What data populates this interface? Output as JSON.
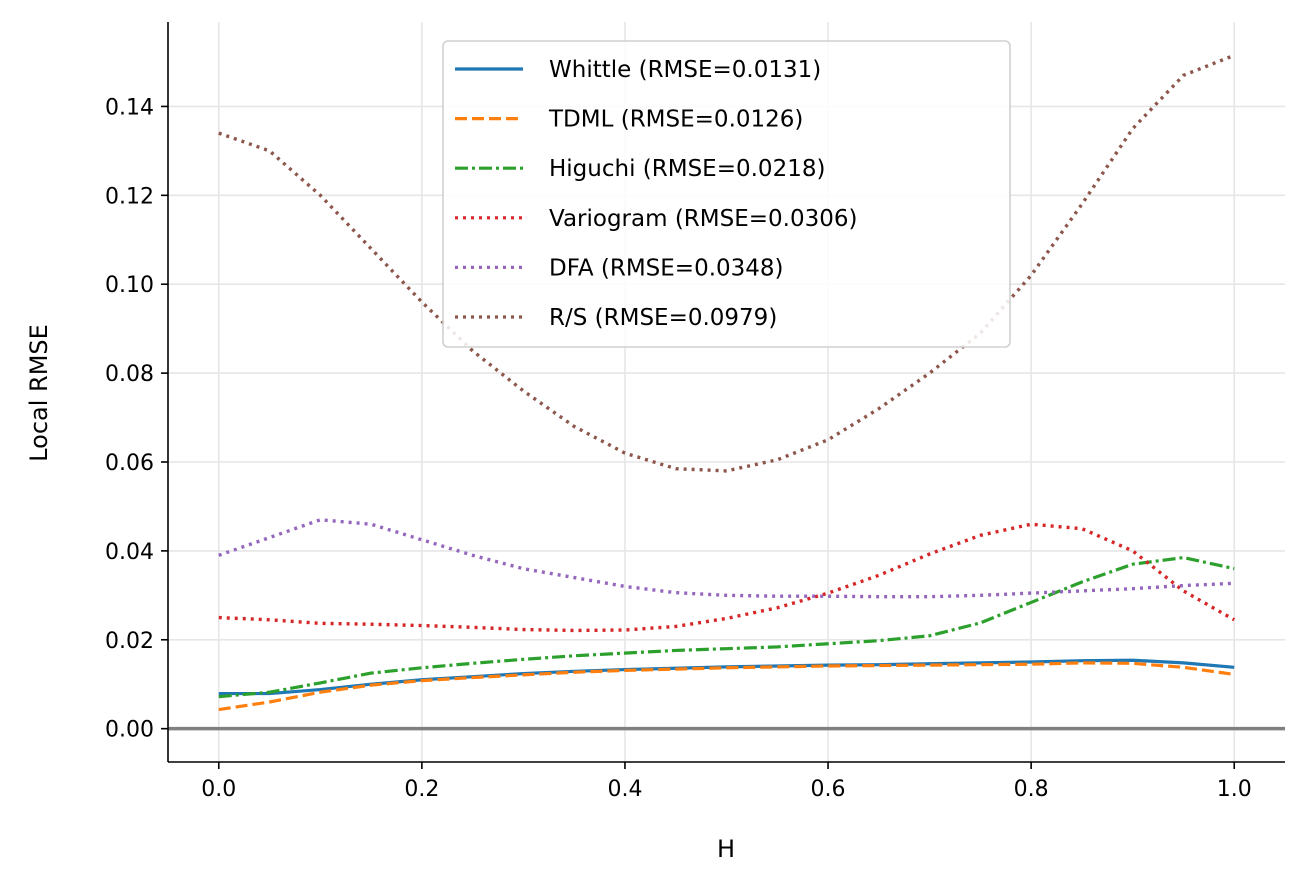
{
  "chart_data": {
    "type": "line",
    "title": "",
    "xlabel": "H",
    "ylabel": "Local RMSE",
    "xlim": [
      -0.05,
      1.05
    ],
    "ylim": [
      -0.0075,
      0.159
    ],
    "xticks": [
      0.0,
      0.2,
      0.4,
      0.6,
      0.8,
      1.0
    ],
    "xtick_labels": [
      "0.0",
      "0.2",
      "0.4",
      "0.6",
      "0.8",
      "1.0"
    ],
    "yticks": [
      0.0,
      0.02,
      0.04,
      0.06,
      0.08,
      0.1,
      0.12,
      0.14
    ],
    "ytick_labels": [
      "0.00",
      "0.02",
      "0.04",
      "0.06",
      "0.08",
      "0.10",
      "0.12",
      "0.14"
    ],
    "grid": true,
    "legend_position": "upper center",
    "reference_line": {
      "y": 0.0,
      "color": "#808080"
    },
    "x": [
      0.0,
      0.05,
      0.1,
      0.15,
      0.2,
      0.25,
      0.3,
      0.35,
      0.4,
      0.45,
      0.5,
      0.55,
      0.6,
      0.65,
      0.7,
      0.75,
      0.8,
      0.85,
      0.9,
      0.95,
      1.0
    ],
    "series": [
      {
        "name": "Whittle (RMSE=0.0131)",
        "color": "#1f77b4",
        "dash": "solid",
        "values": [
          0.0079,
          0.0079,
          0.0088,
          0.01,
          0.011,
          0.0117,
          0.0124,
          0.0129,
          0.0133,
          0.0136,
          0.0139,
          0.0141,
          0.0143,
          0.0144,
          0.0146,
          0.0148,
          0.015,
          0.0153,
          0.0154,
          0.0148,
          0.0138
        ]
      },
      {
        "name": "TDML (RMSE=0.0126)",
        "color": "#ff7f0e",
        "dash": "dashed",
        "values": [
          0.0043,
          0.006,
          0.0082,
          0.0098,
          0.0108,
          0.0115,
          0.0121,
          0.0127,
          0.0131,
          0.0134,
          0.0137,
          0.0139,
          0.0141,
          0.0142,
          0.0143,
          0.0144,
          0.0145,
          0.0148,
          0.0147,
          0.0138,
          0.0122
        ]
      },
      {
        "name": "Higuchi (RMSE=0.0218)",
        "color": "#2ca02c",
        "dash": "dashdot",
        "values": [
          0.0072,
          0.0082,
          0.0103,
          0.0125,
          0.0137,
          0.0147,
          0.0156,
          0.0164,
          0.017,
          0.0176,
          0.018,
          0.0184,
          0.0191,
          0.0198,
          0.0209,
          0.0238,
          0.0284,
          0.033,
          0.037,
          0.0385,
          0.036
        ]
      },
      {
        "name": "Variogram (RMSE=0.0306)",
        "color": "#d62728",
        "dash": "dotted",
        "values": [
          0.025,
          0.0245,
          0.0237,
          0.0235,
          0.0232,
          0.0228,
          0.0223,
          0.0221,
          0.0222,
          0.023,
          0.0248,
          0.0272,
          0.0305,
          0.0345,
          0.0393,
          0.0435,
          0.046,
          0.045,
          0.04,
          0.031,
          0.0245
        ]
      },
      {
        "name": "DFA (RMSE=0.0348)",
        "color": "#9467bd",
        "dash": "dotted",
        "values": [
          0.039,
          0.043,
          0.047,
          0.046,
          0.0425,
          0.039,
          0.036,
          0.034,
          0.032,
          0.0306,
          0.03,
          0.0298,
          0.0298,
          0.0297,
          0.0297,
          0.03,
          0.0305,
          0.031,
          0.0315,
          0.0322,
          0.0327
        ]
      },
      {
        "name": "R/S (RMSE=0.0979)",
        "color": "#8c564b",
        "dash": "dotted",
        "values": [
          0.134,
          0.13,
          0.12,
          0.108,
          0.096,
          0.085,
          0.076,
          0.068,
          0.062,
          0.0585,
          0.058,
          0.0605,
          0.065,
          0.072,
          0.08,
          0.089,
          0.102,
          0.118,
          0.135,
          0.147,
          0.1515
        ]
      }
    ]
  }
}
